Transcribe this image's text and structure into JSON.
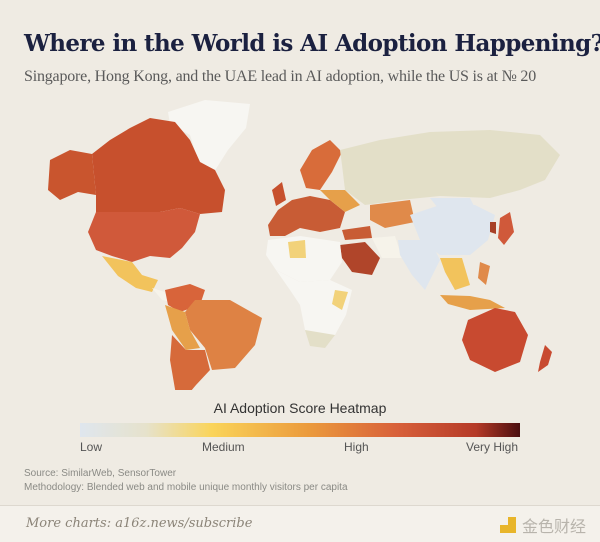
{
  "header": {
    "title": "Where in the World is AI Adoption Happening?",
    "subtitle": "Singapore, Hong Kong, and the UAE lead in AI adoption, while the US is at № 20"
  },
  "legend": {
    "title": "AI Adoption Score Heatmap",
    "labels": [
      "Low",
      "Medium",
      "High",
      "Very High"
    ],
    "colors": [
      "#dfe6ee",
      "#fad45a",
      "#d8603a",
      "#4b0f10"
    ]
  },
  "notes": {
    "source": "Source: SimilarWeb, SensorTower",
    "methodology": "Methodology: Blended web and mobile unique monthly visitors per capita"
  },
  "footer": {
    "more": "More charts: a16z.news/subscribe",
    "watermark": "金色财经"
  }
}
